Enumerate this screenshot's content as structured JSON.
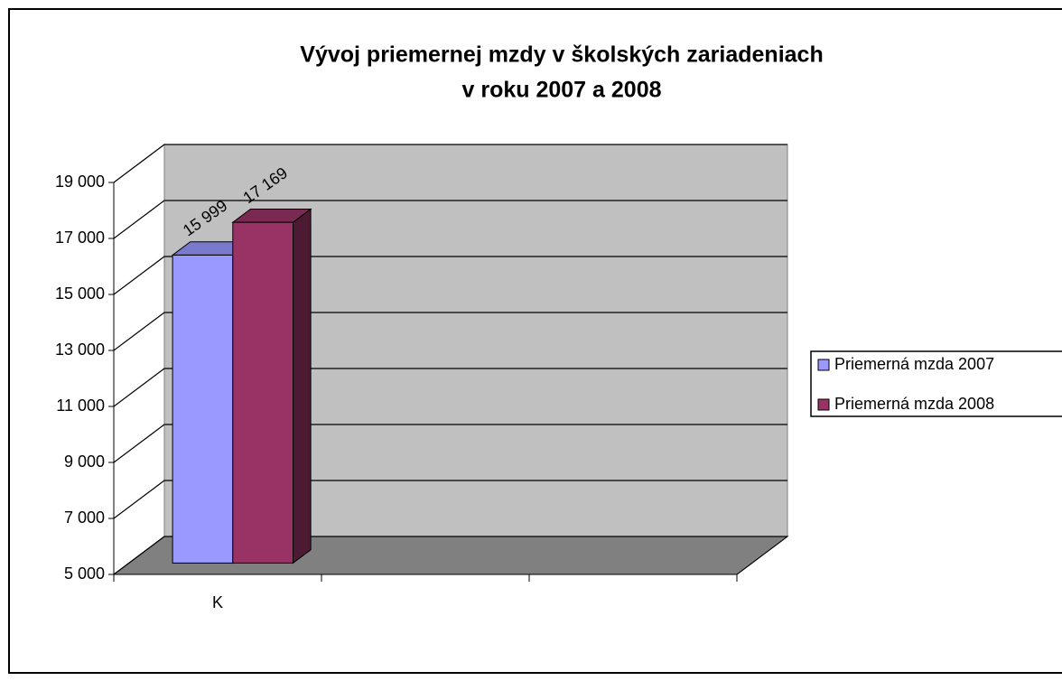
{
  "chart_data": {
    "type": "bar3d",
    "title": [
      "Vývoj priemernej mzdy v školských zariadeniach",
      "v roku 2007 a 2008"
    ],
    "categories": [
      "K",
      null,
      null
    ],
    "series": [
      {
        "name": "Priemerná mzda 2007",
        "color": "#9999ff",
        "values": [
          15999,
          null,
          null
        ],
        "value_labels": [
          "15 999",
          null,
          null
        ]
      },
      {
        "name": "Priemerná mzda 2008",
        "color": "#993366",
        "values": [
          17169,
          null,
          null
        ],
        "value_labels": [
          "17 169",
          null,
          null
        ]
      }
    ],
    "ylim": [
      5000,
      19000
    ],
    "yticks": [
      {
        "value": 5000,
        "label": "5 000"
      },
      {
        "value": 7000,
        "label": "7 000"
      },
      {
        "value": 9000,
        "label": "9 000"
      },
      {
        "value": 11000,
        "label": "11 000"
      },
      {
        "value": 13000,
        "label": "13 000"
      },
      {
        "value": 15000,
        "label": "15 000"
      },
      {
        "value": 17000,
        "label": "17 000"
      },
      {
        "value": 19000,
        "label": "19 000"
      }
    ],
    "grid": true,
    "legend": "right"
  }
}
